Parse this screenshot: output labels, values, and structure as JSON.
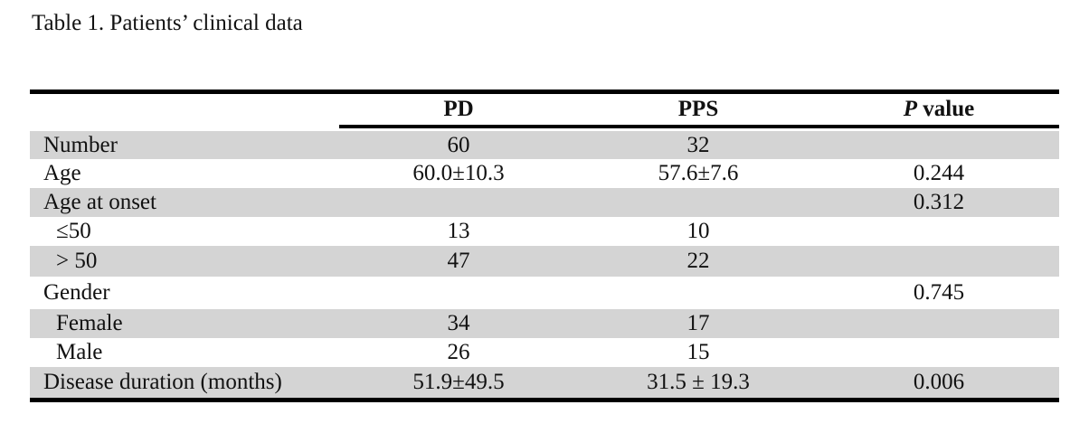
{
  "title": "Table 1. Patients’ clinical data",
  "table": {
    "header": [
      "PD",
      "PPS",
      {
        "italic": "P",
        "rest": " value"
      }
    ],
    "rows": [
      {
        "label": "Number",
        "cells": [
          "60",
          "32",
          null
        ]
      },
      {
        "label": "Age",
        "cells": [
          "60.0±10.3",
          "57.6±7.6",
          "0.244"
        ]
      },
      {
        "label": "Age at onset",
        "cells": [
          null,
          null,
          "0.312"
        ]
      },
      {
        "label": "≤50",
        "indent": true,
        "cells": [
          "13",
          "10",
          null
        ]
      },
      {
        "label": "> 50",
        "indent": true,
        "cells": [
          "47",
          "22",
          null
        ]
      },
      {
        "label": "Gender",
        "cells": [
          null,
          null,
          "0.745"
        ]
      },
      {
        "label": "Female",
        "indent": true,
        "cells": [
          "34",
          "17",
          null
        ]
      },
      {
        "label": "Male",
        "indent": true,
        "cells": [
          "26",
          "15",
          null
        ]
      },
      {
        "label": "Disease duration (months)",
        "cells": [
          "51.9±49.5",
          "31.5 ± 19.3",
          "0.006"
        ]
      }
    ]
  }
}
